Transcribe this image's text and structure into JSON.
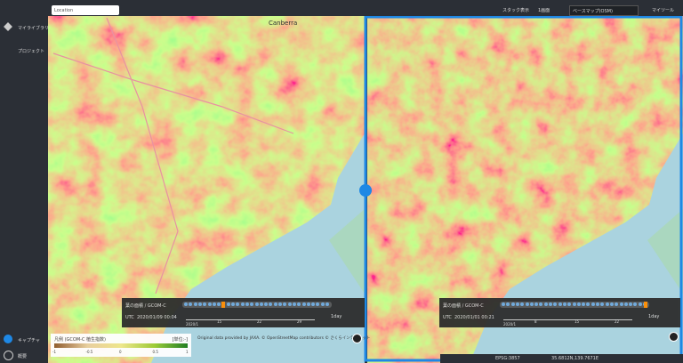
{
  "search": {
    "placeholder": "Location"
  },
  "sidebar": {
    "items": [
      "マイライブラリ",
      "プロジェクト"
    ],
    "bottom": [
      "キャプチャ",
      "概要"
    ]
  },
  "toolbar": {
    "view": "スタック表示",
    "screens": "1画面",
    "basemap": "ベースマップ(OSM)",
    "tools": "マイツール"
  },
  "map": {
    "labels": [
      "Canberra"
    ]
  },
  "left_panel": {
    "layer": "葉の面積 / GCOM-C",
    "utc": "UTC",
    "datetime": "2020/01/09 00:04",
    "month": "2020/1",
    "ticks": [
      "15",
      "22",
      "29"
    ],
    "step": "1day"
  },
  "right_panel": {
    "layer": "葉の面積 / GCOM-C",
    "utc": "UTC",
    "datetime": "2020/01/01 00:21",
    "month": "2020/1",
    "ticks": [
      "8",
      "15",
      "22"
    ],
    "step": "1day"
  },
  "legend": {
    "title": "凡例 (GCOM-C 植生指数)",
    "unit": "[単位:-]",
    "ticks": [
      "-1",
      "-0.5",
      "0",
      "0.5",
      "1"
    ]
  },
  "attribution": "Original data provided by JAXA. © OpenStreetMap contributors © さくらインターネット",
  "status": {
    "crs": "EPSG:3857",
    "coords": "35.6812N,139.7671E"
  }
}
